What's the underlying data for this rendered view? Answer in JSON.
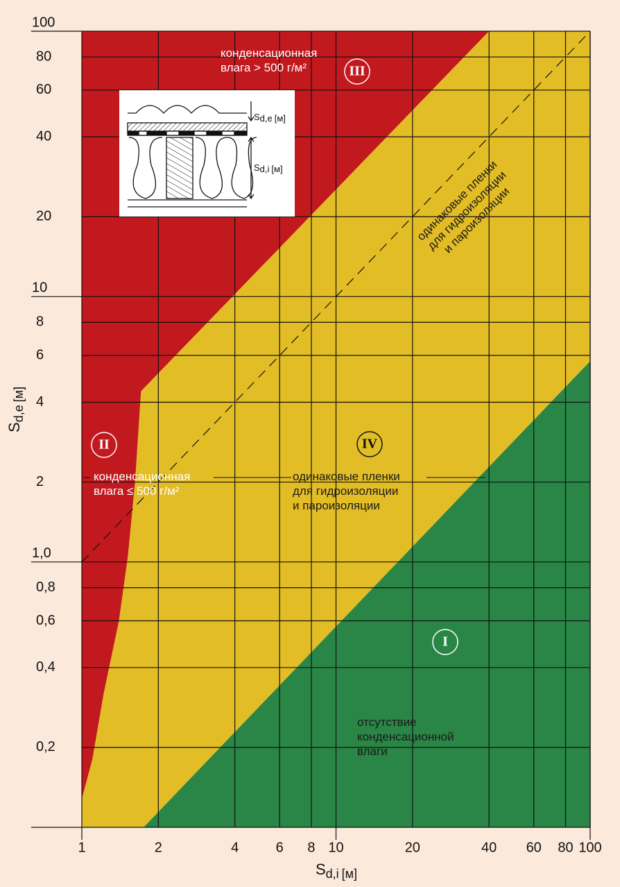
{
  "chart_data": {
    "type": "region",
    "xlabel": {
      "main": "S",
      "sub": "d,i",
      "unit": "[м]"
    },
    "ylabel": {
      "main": "S",
      "sub": "d,e",
      "unit": "[м]"
    },
    "xscale": "log",
    "yscale": "log",
    "xlim": [
      1,
      100
    ],
    "ylim": [
      0.1,
      100
    ],
    "xticks": [
      1,
      2,
      4,
      6,
      8,
      10,
      20,
      40,
      60,
      80,
      100
    ],
    "yticks": [
      100,
      80,
      60,
      40,
      20,
      10,
      8,
      6,
      4,
      2,
      {
        "value": 1,
        "label": "1,0"
      },
      {
        "value": 0.8,
        "label": "0,8"
      },
      {
        "value": 0.6,
        "label": "0,6"
      },
      {
        "value": 0.4,
        "label": "0,4"
      },
      {
        "value": 0.2,
        "label": "0,2"
      }
    ],
    "grid": true,
    "regions": [
      {
        "name": "III",
        "color": "#c2191f",
        "x": [
          1,
          1.1,
          1.22,
          1.4,
          1.52,
          1.62,
          1.71,
          40,
          1
        ],
        "y": [
          0.128,
          0.18,
          0.32,
          0.6,
          1.06,
          2,
          4.4,
          100,
          100
        ],
        "text": [
          "конденсационная",
          "влага > 500 г/м²"
        ]
      },
      {
        "name": "II",
        "color": "#c2191f",
        "x": [],
        "y": [],
        "text": [
          "конденсационная",
          "влага ≤ 500 г/м²"
        ]
      },
      {
        "name": "IV",
        "color": "#e3bd26",
        "x": [
          1,
          1,
          1.1,
          1.22,
          1.4,
          1.52,
          1.62,
          1.71,
          40,
          100,
          100,
          1.75
        ],
        "y": [
          0.1,
          0.128,
          0.18,
          0.32,
          0.6,
          1.06,
          2,
          4.4,
          100,
          100,
          5.71,
          0.1
        ],
        "text": [
          "одинаковые пленки",
          "для гидроизоляции",
          "и пароизоляции"
        ]
      },
      {
        "name": "I",
        "color": "#2a8646",
        "x": [
          1.75,
          100,
          100
        ],
        "y": [
          0.1,
          5.71,
          0.1
        ],
        "text": [
          "отсутствие",
          "конденсационной",
          "влаги"
        ]
      }
    ],
    "reference_line": {
      "x": [
        1,
        100
      ],
      "y": [
        1,
        100
      ],
      "text": [
        "одинаковые пленки",
        "для гидроизоляции",
        "и пароизоляции"
      ]
    },
    "inset": {
      "top_label": {
        "main": "S",
        "sub": "d,e",
        "unit": "[м]"
      },
      "bottom_label": {
        "main": "S",
        "sub": "d,i",
        "unit": "[м]"
      }
    }
  }
}
